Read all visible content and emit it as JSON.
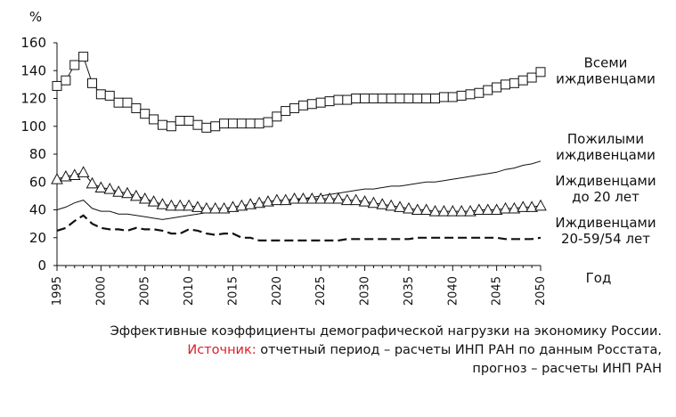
{
  "chart_data": {
    "type": "line",
    "ylabel": "%",
    "xlabel": "Год",
    "ylim": [
      0,
      160
    ],
    "yticks": [
      0,
      20,
      40,
      60,
      80,
      100,
      120,
      140,
      160
    ],
    "xlim": [
      1995,
      2050
    ],
    "xticks": [
      1995,
      2000,
      2005,
      2010,
      2015,
      2020,
      2025,
      2030,
      2035,
      2040,
      2045,
      2050
    ],
    "grid": false,
    "legend": "inline-right",
    "x": [
      1995,
      1996,
      1997,
      1998,
      1999,
      2000,
      2001,
      2002,
      2003,
      2004,
      2005,
      2006,
      2007,
      2008,
      2009,
      2010,
      2011,
      2012,
      2013,
      2014,
      2015,
      2016,
      2017,
      2018,
      2019,
      2020,
      2021,
      2022,
      2023,
      2024,
      2025,
      2026,
      2027,
      2028,
      2029,
      2030,
      2031,
      2032,
      2033,
      2034,
      2035,
      2036,
      2037,
      2038,
      2039,
      2040,
      2041,
      2042,
      2043,
      2044,
      2045,
      2046,
      2047,
      2048,
      2049,
      2050
    ],
    "series": [
      {
        "name": "Всеми иждивенцами",
        "style": "square-markers",
        "values": [
          129,
          133,
          144,
          150,
          131,
          123,
          122,
          117,
          117,
          113,
          109,
          105,
          101,
          100,
          104,
          104,
          101,
          99,
          100,
          102,
          102,
          102,
          102,
          102,
          103,
          107,
          111,
          113,
          115,
          116,
          117,
          118,
          119,
          119,
          120,
          120,
          120,
          120,
          120,
          120,
          120,
          120,
          120,
          120,
          121,
          121,
          122,
          123,
          124,
          126,
          128,
          130,
          131,
          133,
          135,
          139
        ]
      },
      {
        "name": "Пожилыми иждивенцами",
        "style": "thin-line",
        "values": [
          40,
          42,
          45,
          47,
          41,
          39,
          39,
          37,
          37,
          36,
          35,
          34,
          33,
          34,
          35,
          36,
          37,
          38,
          38,
          39,
          40,
          41,
          42,
          43,
          44,
          45,
          46,
          47,
          48,
          49,
          50,
          51,
          52,
          53,
          54,
          55,
          55,
          56,
          57,
          57,
          58,
          59,
          60,
          60,
          61,
          62,
          63,
          64,
          65,
          66,
          67,
          69,
          70,
          72,
          73,
          75
        ]
      },
      {
        "name": "Иждивенцами до 20 лет",
        "style": "triangle-markers",
        "values": [
          62,
          64,
          65,
          67,
          59,
          56,
          55,
          53,
          52,
          50,
          48,
          46,
          44,
          43,
          43,
          43,
          42,
          41,
          41,
          41,
          42,
          43,
          44,
          45,
          46,
          47,
          47,
          48,
          48,
          48,
          48,
          48,
          48,
          47,
          47,
          46,
          45,
          44,
          43,
          42,
          41,
          40,
          40,
          39,
          39,
          39,
          39,
          39,
          40,
          40,
          40,
          41,
          41,
          42,
          42,
          43
        ]
      },
      {
        "name": "Иждивенцами 20-59/54 лет",
        "style": "dashed-line",
        "values": [
          25,
          27,
          32,
          36,
          30,
          27,
          26,
          26,
          25,
          27,
          26,
          26,
          25,
          23,
          23,
          26,
          25,
          23,
          22,
          23,
          23,
          20,
          20,
          18,
          18,
          18,
          18,
          18,
          18,
          18,
          18,
          18,
          18,
          19,
          19,
          19,
          19,
          19,
          19,
          19,
          19,
          20,
          20,
          20,
          20,
          20,
          20,
          20,
          20,
          20,
          20,
          19,
          19,
          19,
          19,
          20
        ]
      }
    ],
    "labels": [
      {
        "lines": [
          "Всеми",
          "иждивенцами"
        ],
        "anchor_value": 140
      },
      {
        "lines": [
          "Пожилыми",
          "иждивенцами"
        ],
        "anchor_value": 85
      },
      {
        "lines": [
          "Иждивенцами",
          "до 20 лет"
        ],
        "anchor_value": 55
      },
      {
        "lines": [
          "Иждивенцами",
          "20-59/54  лет"
        ],
        "anchor_value": 25
      }
    ]
  },
  "caption": {
    "line1": "Эффективные коэффициенты демографической нагрузки на экономику России.",
    "source_label": "Источник:",
    "source_text": " отчетный период – расчеты ИНП РАН по данным Росстата,",
    "line3": "прогноз – расчеты ИНП РАН"
  }
}
